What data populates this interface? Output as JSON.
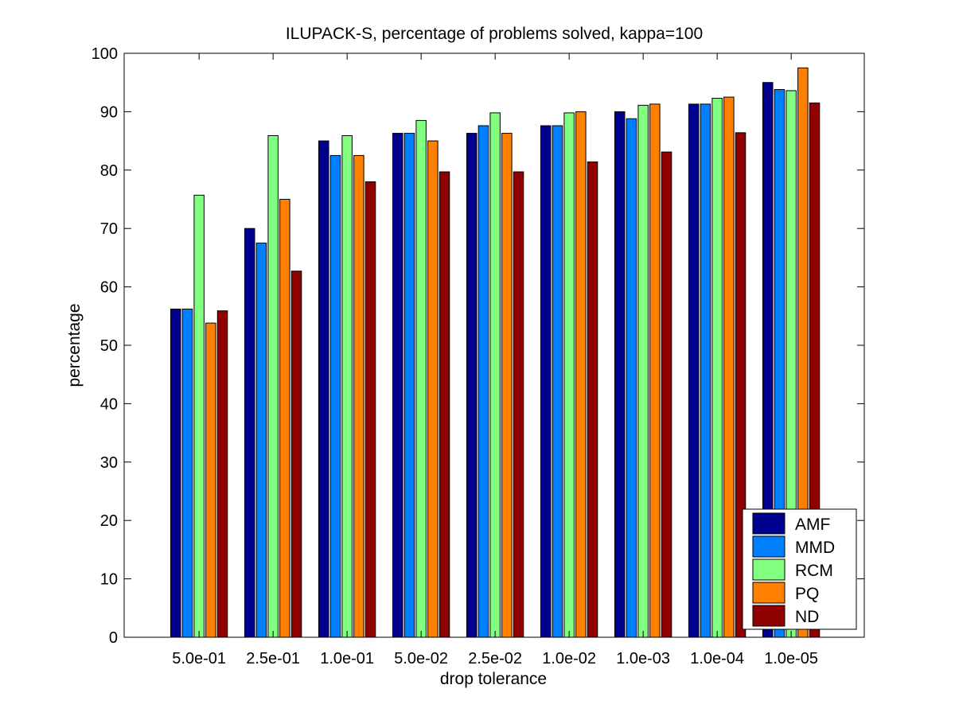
{
  "chart_data": {
    "type": "bar",
    "title": "ILUPACK-S, percentage of problems solved, kappa=100",
    "xlabel": "drop tolerance",
    "ylabel": "percentage",
    "ylim": [
      0,
      100
    ],
    "yticks": [
      0,
      10,
      20,
      30,
      40,
      50,
      60,
      70,
      80,
      90,
      100
    ],
    "categories": [
      "5.0e-01",
      "2.5e-01",
      "1.0e-01",
      "5.0e-02",
      "2.5e-02",
      "1.0e-02",
      "1.0e-03",
      "1.0e-04",
      "1.0e-05"
    ],
    "series": [
      {
        "name": "AMF",
        "color": "#00008f",
        "values": [
          56.2,
          70.0,
          85.0,
          86.3,
          86.3,
          87.6,
          90.0,
          91.3,
          95.0
        ]
      },
      {
        "name": "MMD",
        "color": "#0080ff",
        "values": [
          56.2,
          67.5,
          82.5,
          86.3,
          87.6,
          87.6,
          88.8,
          91.3,
          93.8
        ]
      },
      {
        "name": "RCM",
        "color": "#80ff80",
        "values": [
          75.7,
          85.9,
          85.9,
          88.5,
          89.8,
          89.8,
          91.1,
          92.3,
          93.6
        ]
      },
      {
        "name": "PQ",
        "color": "#ff8000",
        "values": [
          53.8,
          75.0,
          82.5,
          85.0,
          86.3,
          90.0,
          91.3,
          92.5,
          97.5
        ]
      },
      {
        "name": "ND",
        "color": "#8f0000",
        "values": [
          55.9,
          62.7,
          78.0,
          79.7,
          79.7,
          81.4,
          83.1,
          86.4,
          91.5
        ]
      }
    ],
    "legend": "bottom-right",
    "grid": false
  }
}
